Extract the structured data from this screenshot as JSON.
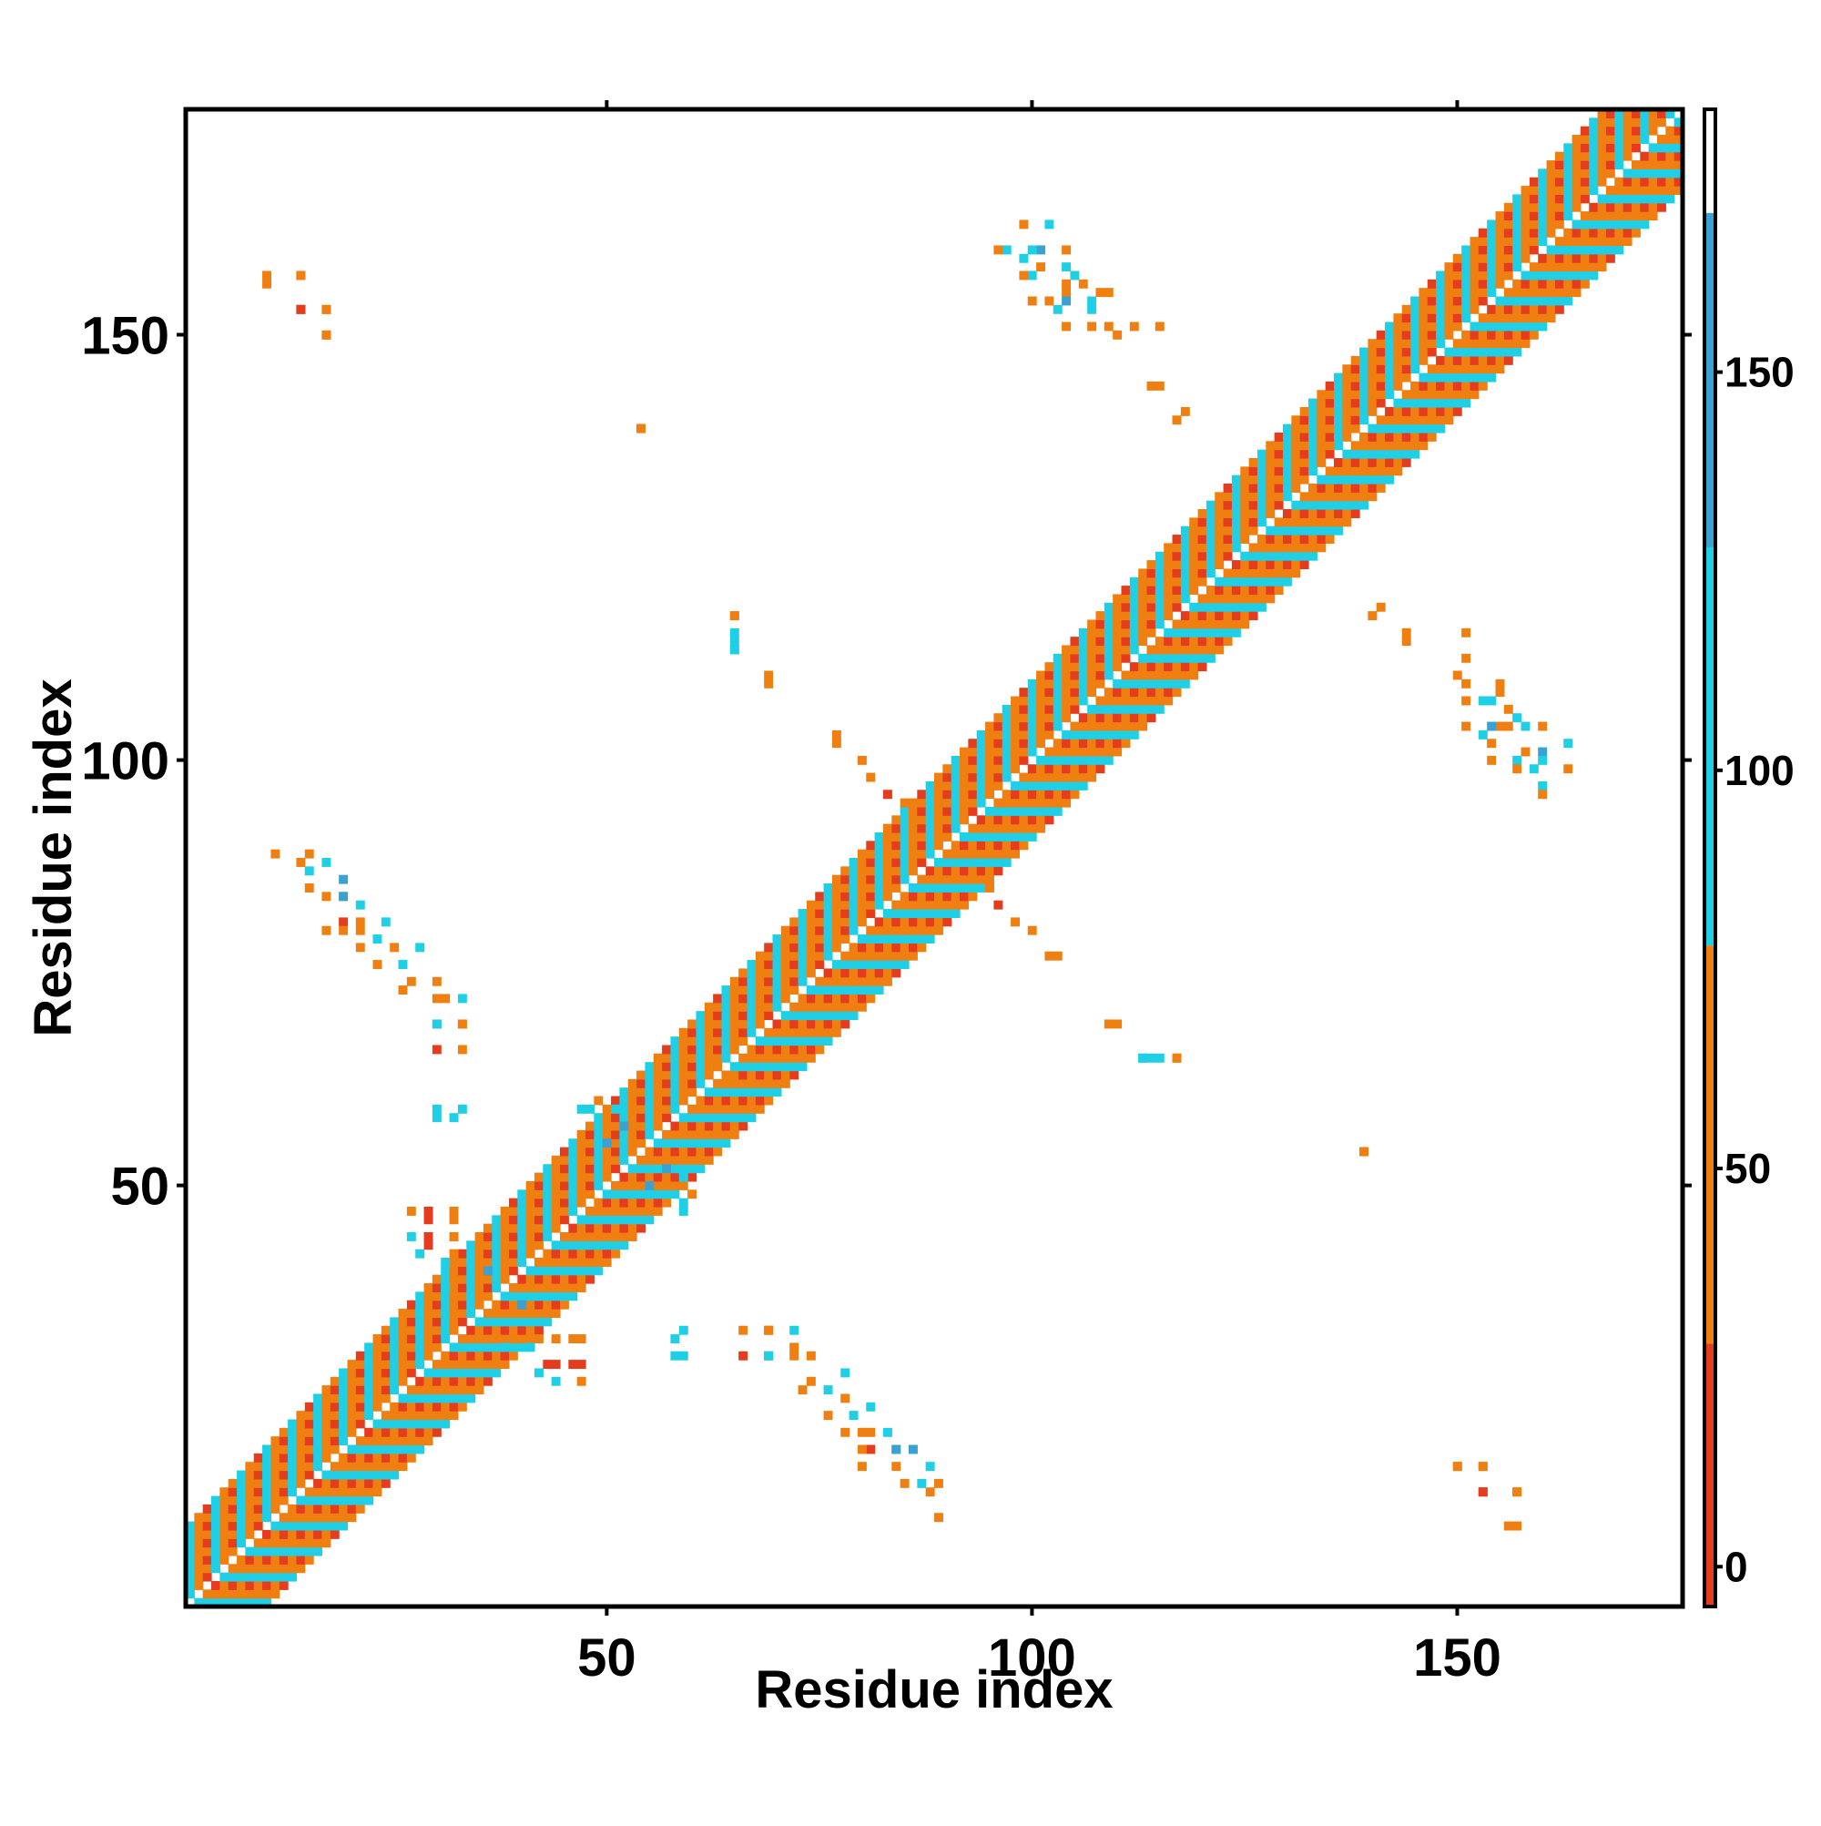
{
  "chart_data": {
    "type": "heatmap",
    "title": "",
    "xlabel": "Residue index",
    "ylabel": "Residue index",
    "xlim": [
      1,
      176
    ],
    "ylim": [
      1,
      176
    ],
    "x_ticks": [
      50,
      100,
      150
    ],
    "y_ticks": [
      50,
      100,
      150
    ],
    "colorbar": {
      "range": [
        -5,
        183
      ],
      "ticks": [
        0,
        50,
        100,
        150
      ],
      "bands": [
        {
          "from": -5,
          "to": 28,
          "color": "#e53c1e"
        },
        {
          "from": 28,
          "to": 78,
          "color": "#f07f12"
        },
        {
          "from": 78,
          "to": 128,
          "color": "#1fcfe6"
        },
        {
          "from": 128,
          "to": 170,
          "color": "#3aa2d2"
        },
        {
          "from": 170,
          "to": 183,
          "color": "#ffffff"
        }
      ]
    },
    "description_of_cells": "Contact map: a band of cells about |i-j| <= 9 along the diagonal plus off-diagonal contact clusters, symmetric about the diagonal",
    "diagonal_band": {
      "half_width": 9,
      "blank_offsets": [
        0
      ],
      "values": [
        20,
        45,
        110,
        40,
        60,
        105
      ]
    },
    "contacts": [
      [
        10,
        157,
        45
      ],
      [
        14,
        157,
        60
      ],
      [
        14,
        153,
        10
      ],
      [
        17,
        153,
        60
      ],
      [
        17,
        150,
        35
      ],
      [
        11,
        89,
        55
      ],
      [
        15,
        89,
        60
      ],
      [
        15,
        87,
        110
      ],
      [
        19,
        86,
        140
      ],
      [
        15,
        85,
        45
      ],
      [
        19,
        84,
        40
      ],
      [
        19,
        81,
        20
      ],
      [
        21,
        81,
        60
      ],
      [
        24,
        81,
        110
      ],
      [
        21,
        78,
        55
      ],
      [
        25,
        78,
        40
      ],
      [
        28,
        78,
        110
      ],
      [
        27,
        74,
        40
      ],
      [
        30,
        74,
        35
      ],
      [
        31,
        72,
        45
      ],
      [
        33,
        72,
        110
      ],
      [
        30,
        69,
        20
      ],
      [
        33,
        69,
        40
      ],
      [
        30,
        59,
        110
      ],
      [
        33,
        59,
        110
      ],
      [
        27,
        47,
        35
      ],
      [
        29,
        47,
        25
      ],
      [
        32,
        47,
        45
      ],
      [
        27,
        44,
        110
      ],
      [
        29,
        44,
        15
      ],
      [
        32,
        44,
        45
      ],
      [
        31,
        41,
        110
      ],
      [
        36,
        40,
        140
      ],
      [
        38,
        31,
        110
      ],
      [
        42,
        32,
        40
      ],
      [
        46,
        32,
        45
      ],
      [
        43,
        29,
        25
      ],
      [
        46,
        29,
        20
      ],
      [
        42,
        28,
        110
      ],
      [
        58,
        32,
        110
      ],
      [
        58,
        30,
        110
      ],
      [
        66,
        33,
        45
      ],
      [
        69,
        33,
        35
      ],
      [
        66,
        30,
        20
      ],
      [
        69,
        30,
        110
      ],
      [
        72,
        30,
        60
      ],
      [
        73,
        26,
        40
      ],
      [
        76,
        26,
        110
      ],
      [
        76,
        23,
        40
      ],
      [
        79,
        23,
        110
      ],
      [
        80,
        21,
        45
      ],
      [
        83,
        21,
        110
      ],
      [
        80,
        19,
        55
      ],
      [
        84,
        19,
        140
      ],
      [
        80,
        17,
        30
      ],
      [
        84,
        17,
        60
      ],
      [
        88,
        17,
        110
      ],
      [
        88,
        14,
        55
      ],
      [
        47,
        59,
        110
      ],
      [
        50,
        55,
        140
      ],
      [
        49,
        60,
        60
      ],
      [
        57,
        52,
        140
      ],
      [
        59,
        51,
        110
      ],
      [
        59,
        48,
        110
      ],
      [
        64,
        63,
        40
      ],
      [
        65,
        117,
        45
      ],
      [
        65,
        115,
        110
      ],
      [
        65,
        113,
        110
      ],
      [
        69,
        110,
        40
      ],
      [
        77,
        103,
        35
      ],
      [
        80,
        100,
        45
      ],
      [
        83,
        96,
        20
      ],
      [
        95,
        85,
        35
      ],
      [
        98,
        81,
        45
      ],
      [
        102,
        77,
        40
      ],
      [
        109,
        69,
        45
      ],
      [
        113,
        65,
        110
      ],
      [
        114,
        65,
        110
      ],
      [
        117,
        65,
        60
      ],
      [
        139,
        54,
        20
      ],
      [
        99,
        163,
        60
      ],
      [
        102,
        163,
        110
      ],
      [
        101,
        160,
        140
      ],
      [
        104,
        160,
        35
      ],
      [
        99,
        159,
        110
      ],
      [
        101,
        158,
        60
      ],
      [
        104,
        158,
        110
      ],
      [
        105,
        157,
        110
      ],
      [
        106,
        156,
        45
      ],
      [
        108,
        155,
        55
      ],
      [
        104,
        155,
        40
      ],
      [
        109,
        155,
        60
      ],
      [
        107,
        153,
        110
      ],
      [
        109,
        151,
        55
      ],
      [
        112,
        151,
        45
      ],
      [
        115,
        151,
        60
      ],
      [
        114,
        144,
        40
      ],
      [
        117,
        140,
        45
      ],
      [
        54,
        139,
        30
      ],
      [
        141,
        118,
        45
      ],
      [
        144,
        115,
        60
      ],
      [
        150,
        110,
        35
      ],
      [
        151,
        107,
        60
      ],
      [
        154,
        107,
        110
      ],
      [
        151,
        104,
        40
      ],
      [
        154,
        104,
        140
      ],
      [
        156,
        104,
        45
      ],
      [
        153,
        103,
        110
      ],
      [
        154,
        102,
        40
      ],
      [
        154,
        100,
        45
      ],
      [
        157,
        100,
        110
      ],
      [
        160,
        100,
        110
      ],
      [
        157,
        99,
        60
      ],
      [
        160,
        97,
        110
      ],
      [
        160,
        96,
        55
      ],
      [
        150,
        17,
        35
      ],
      [
        153,
        17,
        45
      ],
      [
        153,
        14,
        20
      ],
      [
        157,
        14,
        40
      ],
      [
        156,
        10,
        55
      ]
    ]
  }
}
